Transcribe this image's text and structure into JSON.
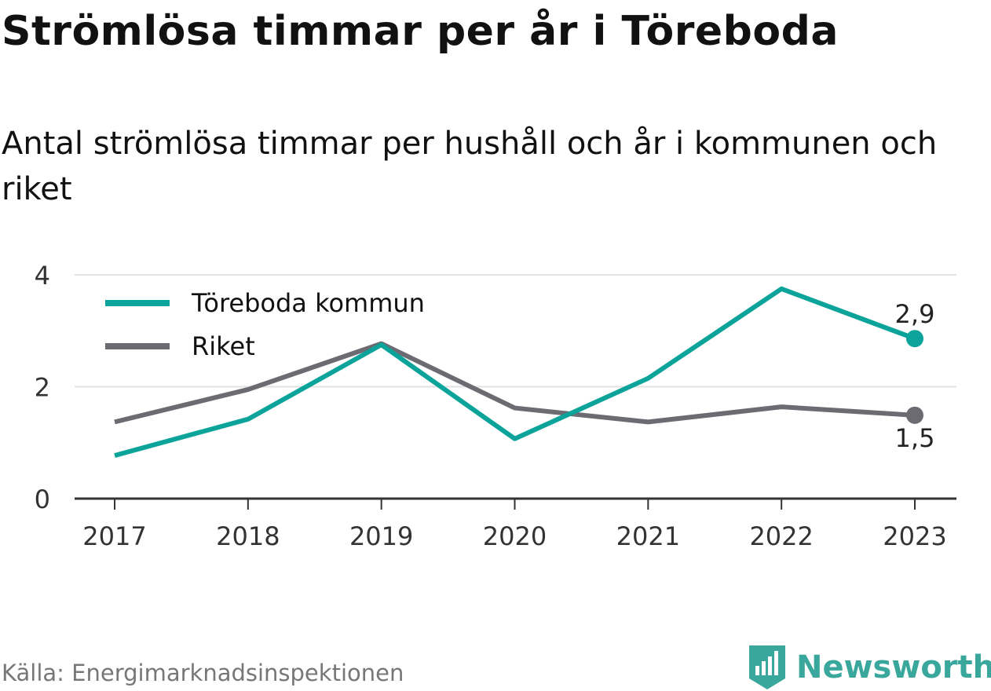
{
  "title": "Strömlösa timmar per år i Töreboda",
  "subtitle": "Antal strömlösa timmar per hushåll och år i kommunen och riket",
  "source": "Källa: Energimarknadsinspektionen",
  "brand": "Newsworthy",
  "colors": {
    "toreboda": "#0ba39a",
    "riket": "#6c6b72",
    "grid": "#e2e2e2",
    "axis": "#333333",
    "brand": "#3aa79c"
  },
  "chart_data": {
    "type": "line",
    "categories": [
      "2017",
      "2018",
      "2019",
      "2020",
      "2021",
      "2022",
      "2023"
    ],
    "ylim": [
      0,
      4
    ],
    "yticks": [
      "0",
      "2",
      "4"
    ],
    "grid": true,
    "legend": "top-left",
    "series": [
      {
        "name": "Töreboda kommun",
        "values": [
          0.77,
          1.42,
          2.75,
          1.07,
          2.15,
          3.75,
          2.86
        ],
        "end_label": "2,9"
      },
      {
        "name": "Riket",
        "values": [
          1.37,
          1.95,
          2.77,
          1.62,
          1.37,
          1.64,
          1.49
        ],
        "end_label": "1,5"
      }
    ]
  }
}
